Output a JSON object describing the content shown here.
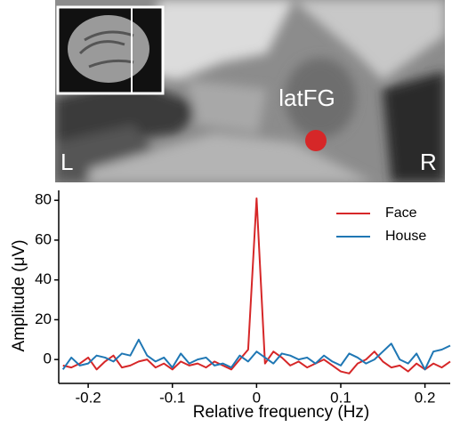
{
  "image": {
    "region_label": "latFG",
    "left_label": "L",
    "right_label": "R"
  },
  "chart_data": {
    "type": "line",
    "xlabel": "Relative frequency (Hz)",
    "ylabel": "Amplitude (μV)",
    "x": [
      -0.23,
      -0.22,
      -0.21,
      -0.2,
      -0.19,
      -0.18,
      -0.17,
      -0.16,
      -0.15,
      -0.14,
      -0.13,
      -0.12,
      -0.11,
      -0.1,
      -0.09,
      -0.08,
      -0.07,
      -0.06,
      -0.05,
      -0.04,
      -0.03,
      -0.02,
      -0.01,
      0,
      0.01,
      0.02,
      0.03,
      0.04,
      0.05,
      0.06,
      0.07,
      0.08,
      0.09,
      0.1,
      0.11,
      0.12,
      0.13,
      0.14,
      0.15,
      0.16,
      0.17,
      0.18,
      0.19,
      0.2,
      0.21,
      0.22,
      0.23
    ],
    "series": [
      {
        "name": "Face",
        "color": "#d62728",
        "values": [
          -3,
          -4,
          -2,
          1,
          -5,
          -1,
          2,
          -4,
          -3,
          -1,
          0,
          -4,
          -2,
          -5,
          -1,
          -3,
          -2,
          -4,
          -1,
          -3,
          -5,
          0,
          5,
          81,
          -2,
          4,
          1,
          -3,
          -1,
          -4,
          -2,
          0,
          -3,
          -6,
          -7,
          -2,
          0,
          4,
          -1,
          -4,
          -3,
          -6,
          -2,
          -5,
          -2,
          -4,
          -1
        ]
      },
      {
        "name": "House",
        "color": "#1f77b4",
        "values": [
          -5,
          1,
          -3,
          -2,
          2,
          1,
          -1,
          3,
          2,
          10,
          2,
          -1,
          1,
          -4,
          3,
          -2,
          0,
          1,
          -3,
          -2,
          -4,
          2,
          -1,
          4,
          1,
          -2,
          3,
          2,
          0,
          1,
          -2,
          2,
          -1,
          -3,
          3,
          1,
          -2,
          0,
          4,
          8,
          0,
          -2,
          3,
          -5,
          4,
          5,
          7
        ]
      }
    ],
    "xlim": [
      -0.235,
      0.23
    ],
    "xticks": [
      -0.2,
      -0.1,
      0,
      0.1,
      0.2
    ],
    "ylim": [
      -12,
      85
    ],
    "yticks": [
      0,
      20,
      40,
      60,
      80
    ],
    "legend": "upper-right"
  }
}
